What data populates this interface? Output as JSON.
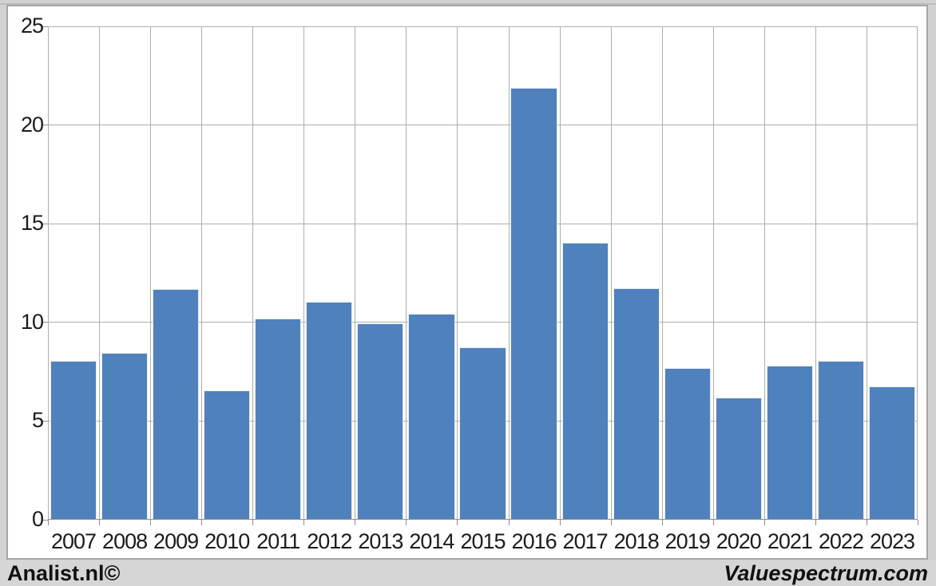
{
  "chart_data": {
    "type": "bar",
    "title": "",
    "xlabel": "",
    "ylabel": "",
    "categories": [
      "2007",
      "2008",
      "2009",
      "2010",
      "2011",
      "2012",
      "2013",
      "2014",
      "2015",
      "2016",
      "2017",
      "2018",
      "2019",
      "2020",
      "2021",
      "2022",
      "2023"
    ],
    "values": [
      8.0,
      8.4,
      11.65,
      6.5,
      10.15,
      11.0,
      9.9,
      10.4,
      8.7,
      21.85,
      14.0,
      11.7,
      7.65,
      6.15,
      7.75,
      8.0,
      6.7
    ],
    "ylim": [
      0,
      25
    ],
    "yticks": [
      0,
      5,
      10,
      15,
      20,
      25
    ],
    "ytick_labels": [
      "0",
      "5",
      "10",
      "15",
      "20",
      "25"
    ],
    "grid": true,
    "legend": "none",
    "colors": {
      "bar_fill": "#4f81bd",
      "bar_border": "#e8eef6",
      "gridline": "#aeaeae",
      "axis": "#8f8f8f",
      "tick": "#8f8f8f",
      "text": "#1c1c1c",
      "plot_background": "#ffffff",
      "outer_background": "#d2d2d2",
      "frame_border": "#a6a6a6"
    }
  },
  "footer": {
    "left_brand": "Analist.nl©",
    "right_brand": "Valuespectrum.com"
  }
}
